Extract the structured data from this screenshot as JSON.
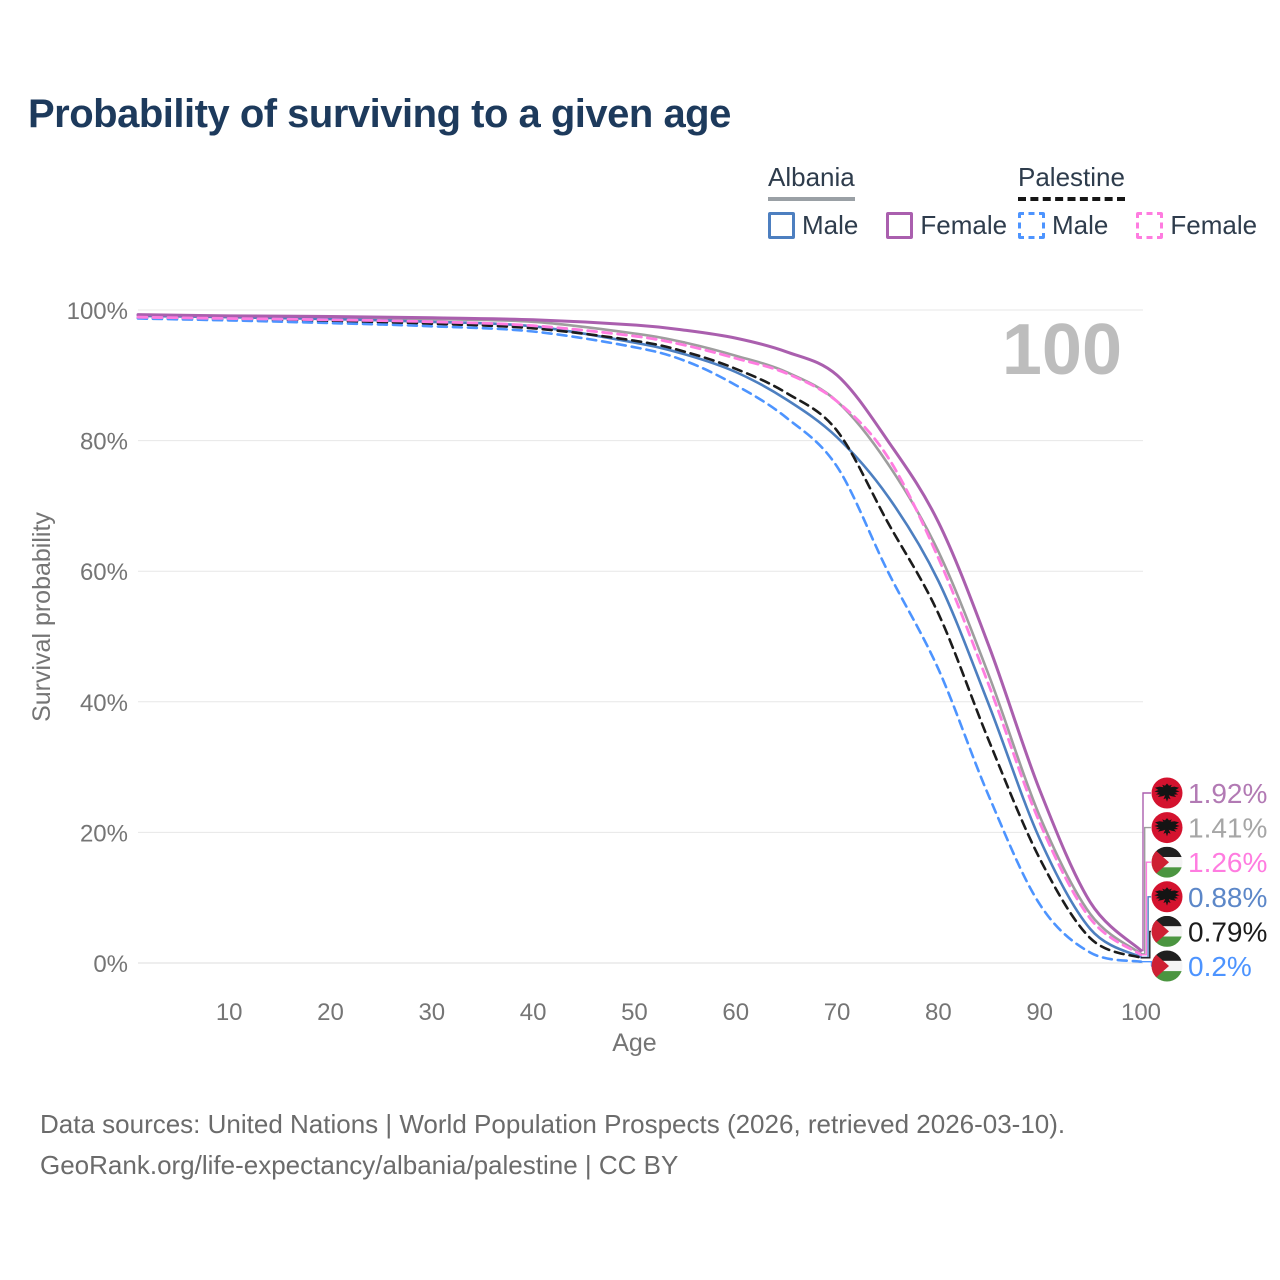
{
  "title": "Probability of surviving to a given age",
  "legend": {
    "groups": [
      {
        "label": "Albania",
        "line_style": "solid",
        "underline_color": "#9aa0a5",
        "items": [
          {
            "label": "Male",
            "color": "#4d7fc0"
          },
          {
            "label": "Female",
            "color": "#aa5fae"
          }
        ]
      },
      {
        "label": "Palestine",
        "line_style": "dashed",
        "underline_color": "#161616",
        "items": [
          {
            "label": "Male",
            "color": "#4d94ff"
          },
          {
            "label": "Female",
            "color": "#ff7ce0"
          }
        ]
      }
    ]
  },
  "chart_data": {
    "type": "line",
    "title": "Probability of surviving to a given age",
    "xlabel": "Age",
    "ylabel": "Survival probability",
    "x_range": [
      1,
      100
    ],
    "y_range": [
      0,
      100
    ],
    "x_ticks": [
      10,
      20,
      30,
      40,
      50,
      60,
      70,
      80,
      90,
      100
    ],
    "y_ticks": [
      {
        "value": 0,
        "label": "0%"
      },
      {
        "value": 20,
        "label": "20%"
      },
      {
        "value": 40,
        "label": "40%"
      },
      {
        "value": 60,
        "label": "60%"
      },
      {
        "value": 80,
        "label": "80%"
      },
      {
        "value": 100,
        "label": "100%"
      }
    ],
    "grid": "horizontal",
    "watermark": "100",
    "ages": [
      1,
      10,
      20,
      30,
      40,
      50,
      55,
      60,
      65,
      70,
      75,
      80,
      85,
      90,
      95,
      100
    ],
    "series": [
      {
        "name": "Albania Both sexes",
        "country": "Albania",
        "sex": "Both",
        "color": "#9e9e9e",
        "dash": false,
        "width": 2.6,
        "flag": "albania",
        "end_label": "1.41%",
        "end_label_color": "#a6a6a6",
        "label_row": 1,
        "values": [
          99.2,
          99.0,
          98.8,
          98.6,
          98.2,
          96.4,
          95.0,
          93.0,
          90.5,
          86.0,
          76.5,
          63.0,
          44.0,
          22.5,
          7.5,
          1.41
        ]
      },
      {
        "name": "Albania Male",
        "country": "Albania",
        "sex": "Male",
        "color": "#4d7fc0",
        "dash": false,
        "width": 2.6,
        "flag": "albania",
        "end_label": "0.88%",
        "end_label_color": "#5c87c8",
        "label_row": 3,
        "values": [
          99.1,
          98.9,
          98.6,
          98.2,
          97.5,
          95.0,
          93.2,
          90.5,
          86.3,
          80.5,
          71.5,
          58.5,
          39.5,
          19.0,
          5.2,
          0.88
        ]
      },
      {
        "name": "Albania Female",
        "country": "Albania",
        "sex": "Female",
        "color": "#aa5fae",
        "dash": false,
        "width": 3.0,
        "flag": "albania",
        "end_label": "1.92%",
        "end_label_color": "#b27ab4",
        "label_row": 0,
        "values": [
          99.3,
          99.1,
          99.0,
          98.8,
          98.5,
          97.7,
          96.9,
          95.7,
          93.6,
          90.0,
          80.0,
          67.5,
          48.5,
          26.5,
          9.3,
          1.92
        ]
      },
      {
        "name": "Palestine Both sexes",
        "country": "Palestine",
        "sex": "Both",
        "color": "#1c1c1c",
        "dash": true,
        "width": 2.6,
        "flag": "palestine",
        "end_label": "0.79%",
        "end_label_color": "#1c1c1c",
        "label_row": 4,
        "values": [
          98.8,
          98.6,
          98.3,
          97.9,
          97.2,
          95.3,
          93.6,
          91.0,
          87.3,
          81.5,
          67.5,
          53.5,
          34.0,
          16.0,
          3.8,
          0.79
        ]
      },
      {
        "name": "Palestine Male",
        "country": "Palestine",
        "sex": "Male",
        "color": "#4d94ff",
        "dash": true,
        "width": 2.6,
        "flag": "palestine",
        "end_label": "0.2%",
        "end_label_color": "#4d94ff",
        "label_row": 5,
        "values": [
          98.7,
          98.4,
          98.0,
          97.5,
          96.7,
          94.3,
          92.2,
          88.5,
          83.5,
          76.0,
          60.0,
          45.0,
          25.5,
          9.0,
          1.6,
          0.2
        ]
      },
      {
        "name": "Palestine Female",
        "country": "Palestine",
        "sex": "Female",
        "color": "#ff7ce0",
        "dash": true,
        "width": 2.8,
        "flag": "palestine",
        "end_label": "1.26%",
        "end_label_color": "#ff7ce0",
        "label_row": 2,
        "values": [
          98.9,
          98.7,
          98.5,
          98.2,
          97.6,
          96.0,
          94.6,
          92.6,
          90.3,
          86.0,
          77.5,
          62.0,
          42.5,
          21.5,
          6.8,
          1.26
        ]
      }
    ],
    "flags": {
      "albania": {
        "background": "#d4122e",
        "eagle": "#141414"
      },
      "palestine": {
        "black": "#1f1f1f",
        "white": "#f4f4f4",
        "green": "#4b9540",
        "red": "#ce2033"
      }
    }
  },
  "footer": {
    "line1": "Data sources: United Nations | World Population Prospects (2026, retrieved 2026-03-10).",
    "line2": "GeoRank.org/life-expectancy/albania/palestine | CC BY"
  }
}
